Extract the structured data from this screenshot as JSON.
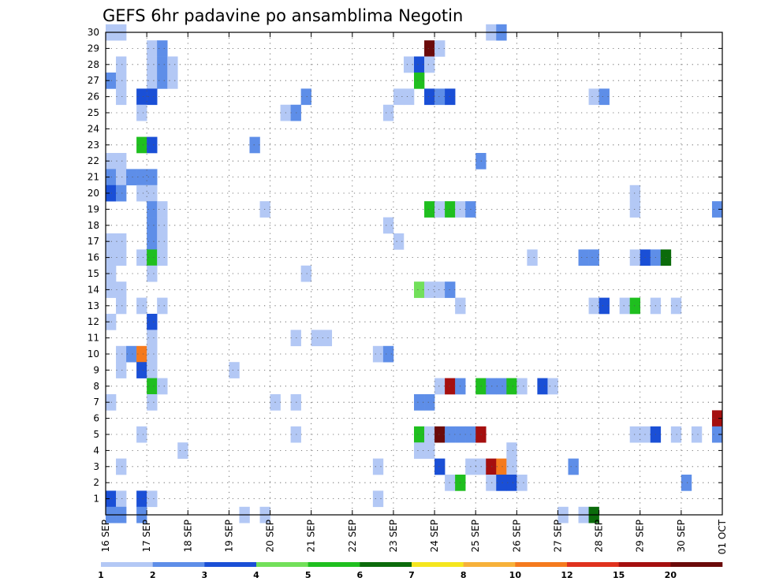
{
  "chart_data": {
    "type": "heatmap",
    "title": "GEFS 6hr padavine po ansamblima Negotin",
    "xlabel": "",
    "ylabel": "",
    "x_tick_labels": [
      "16 SEP",
      "17 SEP",
      "18 SEP",
      "19 SEP",
      "20 SEP",
      "21 SEP",
      "22 SEP",
      "23 SEP",
      "24 SEP",
      "25 SEP",
      "26 SEP",
      "27 SEP",
      "28 SEP",
      "29 SEP",
      "30 SEP",
      "01 OCT"
    ],
    "y_tick_labels": [
      "1",
      "2",
      "3",
      "4",
      "5",
      "6",
      "7",
      "8",
      "9",
      "10",
      "11",
      "12",
      "13",
      "14",
      "15",
      "16",
      "17",
      "18",
      "19",
      "20",
      "21",
      "22",
      "23",
      "24",
      "25",
      "26",
      "27",
      "28",
      "29",
      "30"
    ],
    "ylim": [
      0,
      30
    ],
    "xlim_steps": [
      0,
      60
    ],
    "step_hours": 6,
    "grid": true,
    "colorbar": {
      "labels": [
        "1",
        "2",
        "3",
        "4",
        "5",
        "6",
        "7",
        "8",
        "10",
        "12",
        "15",
        "20"
      ],
      "colors": [
        "#b3c8f5",
        "#5e8ee8",
        "#1a4fd6",
        "#72e05a",
        "#1fbf1f",
        "#0b6b0b",
        "#f5e61e",
        "#f7b13a",
        "#f57a1e",
        "#e0321e",
        "#a50f0f",
        "#6b0a0a"
      ]
    },
    "cells": [
      {
        "m": 30,
        "s": [
          0
        ],
        "v": 1
      },
      {
        "m": 30,
        "s": [
          1
        ],
        "v": 1
      },
      {
        "m": 30,
        "s": [
          37
        ],
        "v": 1
      },
      {
        "m": 30,
        "s": [
          38
        ],
        "v": 2
      },
      {
        "m": 29,
        "s": [
          4
        ],
        "v": 1
      },
      {
        "m": 29,
        "s": [
          5
        ],
        "v": 2
      },
      {
        "m": 29,
        "s": [
          31
        ],
        "v": 20
      },
      {
        "m": 29,
        "s": [
          32
        ],
        "v": 1
      },
      {
        "m": 28,
        "s": [
          1
        ],
        "v": 1
      },
      {
        "m": 28,
        "s": [
          4
        ],
        "v": 1
      },
      {
        "m": 28,
        "s": [
          5
        ],
        "v": 2
      },
      {
        "m": 28,
        "s": [
          6
        ],
        "v": 1
      },
      {
        "m": 28,
        "s": [
          29
        ],
        "v": 1
      },
      {
        "m": 28,
        "s": [
          30
        ],
        "v": 3
      },
      {
        "m": 28,
        "s": [
          31
        ],
        "v": 1
      },
      {
        "m": 27,
        "s": [
          0
        ],
        "v": 2
      },
      {
        "m": 27,
        "s": [
          1
        ],
        "v": 1
      },
      {
        "m": 27,
        "s": [
          4
        ],
        "v": 1
      },
      {
        "m": 27,
        "s": [
          5
        ],
        "v": 2
      },
      {
        "m": 27,
        "s": [
          6
        ],
        "v": 1
      },
      {
        "m": 27,
        "s": [
          30
        ],
        "v": 5
      },
      {
        "m": 26,
        "s": [
          1
        ],
        "v": 1
      },
      {
        "m": 26,
        "s": [
          3
        ],
        "v": 3
      },
      {
        "m": 26,
        "s": [
          4
        ],
        "v": 3
      },
      {
        "m": 26,
        "s": [
          19
        ],
        "v": 2
      },
      {
        "m": 26,
        "s": [
          28
        ],
        "v": 1
      },
      {
        "m": 26,
        "s": [
          29
        ],
        "v": 1
      },
      {
        "m": 26,
        "s": [
          31
        ],
        "v": 3
      },
      {
        "m": 26,
        "s": [
          32
        ],
        "v": 2
      },
      {
        "m": 26,
        "s": [
          33
        ],
        "v": 3
      },
      {
        "m": 26,
        "s": [
          47
        ],
        "v": 1
      },
      {
        "m": 26,
        "s": [
          48
        ],
        "v": 2
      },
      {
        "m": 25,
        "s": [
          3
        ],
        "v": 1
      },
      {
        "m": 25,
        "s": [
          17
        ],
        "v": 1
      },
      {
        "m": 25,
        "s": [
          18
        ],
        "v": 2
      },
      {
        "m": 25,
        "s": [
          27
        ],
        "v": 1
      },
      {
        "m": 23,
        "s": [
          3
        ],
        "v": 5
      },
      {
        "m": 23,
        "s": [
          4
        ],
        "v": 3
      },
      {
        "m": 23,
        "s": [
          14
        ],
        "v": 2
      },
      {
        "m": 22,
        "s": [
          0
        ],
        "v": 1
      },
      {
        "m": 22,
        "s": [
          1
        ],
        "v": 1
      },
      {
        "m": 22,
        "s": [
          36
        ],
        "v": 2
      },
      {
        "m": 21,
        "s": [
          0
        ],
        "v": 2
      },
      {
        "m": 21,
        "s": [
          1
        ],
        "v": 1
      },
      {
        "m": 21,
        "s": [
          2
        ],
        "v": 2
      },
      {
        "m": 21,
        "s": [
          3
        ],
        "v": 2
      },
      {
        "m": 21,
        "s": [
          4
        ],
        "v": 2
      },
      {
        "m": 20,
        "s": [
          0
        ],
        "v": 3
      },
      {
        "m": 20,
        "s": [
          1
        ],
        "v": 2
      },
      {
        "m": 20,
        "s": [
          3
        ],
        "v": 1
      },
      {
        "m": 20,
        "s": [
          4
        ],
        "v": 1
      },
      {
        "m": 20,
        "s": [
          51
        ],
        "v": 1
      },
      {
        "m": 19,
        "s": [
          4
        ],
        "v": 2
      },
      {
        "m": 19,
        "s": [
          5
        ],
        "v": 1
      },
      {
        "m": 19,
        "s": [
          15
        ],
        "v": 1
      },
      {
        "m": 19,
        "s": [
          31
        ],
        "v": 5
      },
      {
        "m": 19,
        "s": [
          32
        ],
        "v": 1
      },
      {
        "m": 19,
        "s": [
          33
        ],
        "v": 5
      },
      {
        "m": 19,
        "s": [
          34
        ],
        "v": 1
      },
      {
        "m": 19,
        "s": [
          35
        ],
        "v": 2
      },
      {
        "m": 19,
        "s": [
          51
        ],
        "v": 1
      },
      {
        "m": 19,
        "s": [
          59
        ],
        "v": 2
      },
      {
        "m": 18,
        "s": [
          4
        ],
        "v": 2
      },
      {
        "m": 18,
        "s": [
          5
        ],
        "v": 1
      },
      {
        "m": 18,
        "s": [
          27
        ],
        "v": 1
      },
      {
        "m": 17,
        "s": [
          0
        ],
        "v": 1
      },
      {
        "m": 17,
        "s": [
          1
        ],
        "v": 1
      },
      {
        "m": 17,
        "s": [
          4
        ],
        "v": 2
      },
      {
        "m": 17,
        "s": [
          5
        ],
        "v": 1
      },
      {
        "m": 17,
        "s": [
          28
        ],
        "v": 1
      },
      {
        "m": 16,
        "s": [
          0
        ],
        "v": 1
      },
      {
        "m": 16,
        "s": [
          1
        ],
        "v": 1
      },
      {
        "m": 16,
        "s": [
          3
        ],
        "v": 1
      },
      {
        "m": 16,
        "s": [
          4
        ],
        "v": 5
      },
      {
        "m": 16,
        "s": [
          5
        ],
        "v": 1
      },
      {
        "m": 16,
        "s": [
          41
        ],
        "v": 1
      },
      {
        "m": 16,
        "s": [
          46
        ],
        "v": 2
      },
      {
        "m": 16,
        "s": [
          47
        ],
        "v": 2
      },
      {
        "m": 16,
        "s": [
          51
        ],
        "v": 1
      },
      {
        "m": 16,
        "s": [
          52
        ],
        "v": 3
      },
      {
        "m": 16,
        "s": [
          53
        ],
        "v": 2
      },
      {
        "m": 16,
        "s": [
          54
        ],
        "v": 6
      },
      {
        "m": 15,
        "s": [
          0
        ],
        "v": 1
      },
      {
        "m": 15,
        "s": [
          4
        ],
        "v": 1
      },
      {
        "m": 15,
        "s": [
          19
        ],
        "v": 1
      },
      {
        "m": 14,
        "s": [
          0
        ],
        "v": 1
      },
      {
        "m": 14,
        "s": [
          1
        ],
        "v": 1
      },
      {
        "m": 14,
        "s": [
          30
        ],
        "v": 4
      },
      {
        "m": 14,
        "s": [
          31
        ],
        "v": 1
      },
      {
        "m": 14,
        "s": [
          32
        ],
        "v": 1
      },
      {
        "m": 14,
        "s": [
          33
        ],
        "v": 2
      },
      {
        "m": 13,
        "s": [
          1
        ],
        "v": 1
      },
      {
        "m": 13,
        "s": [
          3
        ],
        "v": 1
      },
      {
        "m": 13,
        "s": [
          5
        ],
        "v": 1
      },
      {
        "m": 13,
        "s": [
          34
        ],
        "v": 1
      },
      {
        "m": 13,
        "s": [
          47
        ],
        "v": 1
      },
      {
        "m": 13,
        "s": [
          48
        ],
        "v": 3
      },
      {
        "m": 13,
        "s": [
          50
        ],
        "v": 1
      },
      {
        "m": 13,
        "s": [
          51
        ],
        "v": 5
      },
      {
        "m": 13,
        "s": [
          53
        ],
        "v": 1
      },
      {
        "m": 13,
        "s": [
          55
        ],
        "v": 1
      },
      {
        "m": 12,
        "s": [
          0
        ],
        "v": 1
      },
      {
        "m": 12,
        "s": [
          4
        ],
        "v": 3
      },
      {
        "m": 11,
        "s": [
          4
        ],
        "v": 1
      },
      {
        "m": 11,
        "s": [
          18
        ],
        "v": 1
      },
      {
        "m": 11,
        "s": [
          20
        ],
        "v": 1
      },
      {
        "m": 11,
        "s": [
          21
        ],
        "v": 1
      },
      {
        "m": 10,
        "s": [
          1
        ],
        "v": 1
      },
      {
        "m": 10,
        "s": [
          2
        ],
        "v": 2
      },
      {
        "m": 10,
        "s": [
          3
        ],
        "v": 10
      },
      {
        "m": 10,
        "s": [
          4
        ],
        "v": 1
      },
      {
        "m": 10,
        "s": [
          26
        ],
        "v": 1
      },
      {
        "m": 10,
        "s": [
          27
        ],
        "v": 2
      },
      {
        "m": 9,
        "s": [
          1
        ],
        "v": 1
      },
      {
        "m": 9,
        "s": [
          3
        ],
        "v": 3
      },
      {
        "m": 9,
        "s": [
          4
        ],
        "v": 1
      },
      {
        "m": 9,
        "s": [
          12
        ],
        "v": 1
      },
      {
        "m": 8,
        "s": [
          4
        ],
        "v": 5
      },
      {
        "m": 8,
        "s": [
          5
        ],
        "v": 1
      },
      {
        "m": 8,
        "s": [
          32
        ],
        "v": 1
      },
      {
        "m": 8,
        "s": [
          33
        ],
        "v": 15
      },
      {
        "m": 8,
        "s": [
          34
        ],
        "v": 2
      },
      {
        "m": 8,
        "s": [
          36
        ],
        "v": 5
      },
      {
        "m": 8,
        "s": [
          37
        ],
        "v": 2
      },
      {
        "m": 8,
        "s": [
          38
        ],
        "v": 2
      },
      {
        "m": 8,
        "s": [
          39
        ],
        "v": 5
      },
      {
        "m": 8,
        "s": [
          40
        ],
        "v": 1
      },
      {
        "m": 8,
        "s": [
          42
        ],
        "v": 3
      },
      {
        "m": 8,
        "s": [
          43
        ],
        "v": 1
      },
      {
        "m": 7,
        "s": [
          0
        ],
        "v": 1
      },
      {
        "m": 7,
        "s": [
          4
        ],
        "v": 1
      },
      {
        "m": 7,
        "s": [
          16
        ],
        "v": 1
      },
      {
        "m": 7,
        "s": [
          18
        ],
        "v": 1
      },
      {
        "m": 7,
        "s": [
          30
        ],
        "v": 2
      },
      {
        "m": 7,
        "s": [
          31
        ],
        "v": 2
      },
      {
        "m": 6,
        "s": [
          59
        ],
        "v": 15
      },
      {
        "m": 5,
        "s": [
          3
        ],
        "v": 1
      },
      {
        "m": 5,
        "s": [
          18
        ],
        "v": 1
      },
      {
        "m": 5,
        "s": [
          30
        ],
        "v": 5
      },
      {
        "m": 5,
        "s": [
          31
        ],
        "v": 1
      },
      {
        "m": 5,
        "s": [
          32
        ],
        "v": 20
      },
      {
        "m": 5,
        "s": [
          33
        ],
        "v": 2
      },
      {
        "m": 5,
        "s": [
          34
        ],
        "v": 2
      },
      {
        "m": 5,
        "s": [
          35
        ],
        "v": 2
      },
      {
        "m": 5,
        "s": [
          36
        ],
        "v": 15
      },
      {
        "m": 5,
        "s": [
          51
        ],
        "v": 1
      },
      {
        "m": 5,
        "s": [
          52
        ],
        "v": 1
      },
      {
        "m": 5,
        "s": [
          53
        ],
        "v": 3
      },
      {
        "m": 5,
        "s": [
          55
        ],
        "v": 1
      },
      {
        "m": 5,
        "s": [
          57
        ],
        "v": 1
      },
      {
        "m": 5,
        "s": [
          59
        ],
        "v": 2
      },
      {
        "m": 4,
        "s": [
          7
        ],
        "v": 1
      },
      {
        "m": 4,
        "s": [
          30
        ],
        "v": 1
      },
      {
        "m": 4,
        "s": [
          31
        ],
        "v": 1
      },
      {
        "m": 4,
        "s": [
          39
        ],
        "v": 1
      },
      {
        "m": 3,
        "s": [
          1
        ],
        "v": 1
      },
      {
        "m": 3,
        "s": [
          26
        ],
        "v": 1
      },
      {
        "m": 3,
        "s": [
          32
        ],
        "v": 3
      },
      {
        "m": 3,
        "s": [
          35
        ],
        "v": 1
      },
      {
        "m": 3,
        "s": [
          36
        ],
        "v": 1
      },
      {
        "m": 3,
        "s": [
          37
        ],
        "v": 15
      },
      {
        "m": 3,
        "s": [
          38
        ],
        "v": 10
      },
      {
        "m": 3,
        "s": [
          39
        ],
        "v": 1
      },
      {
        "m": 3,
        "s": [
          45
        ],
        "v": 2
      },
      {
        "m": 2,
        "s": [
          33
        ],
        "v": 1
      },
      {
        "m": 2,
        "s": [
          34
        ],
        "v": 5
      },
      {
        "m": 2,
        "s": [
          37
        ],
        "v": 1
      },
      {
        "m": 2,
        "s": [
          38
        ],
        "v": 3
      },
      {
        "m": 2,
        "s": [
          39
        ],
        "v": 3
      },
      {
        "m": 2,
        "s": [
          40
        ],
        "v": 1
      },
      {
        "m": 2,
        "s": [
          56
        ],
        "v": 2
      },
      {
        "m": 1,
        "s": [
          0
        ],
        "v": 3
      },
      {
        "m": 1,
        "s": [
          1
        ],
        "v": 1
      },
      {
        "m": 1,
        "s": [
          3
        ],
        "v": 3
      },
      {
        "m": 1,
        "s": [
          4
        ],
        "v": 1
      },
      {
        "m": 1,
        "s": [
          26
        ],
        "v": 1
      },
      {
        "m": 0,
        "s": [
          0
        ],
        "v": 2
      },
      {
        "m": 0,
        "s": [
          1
        ],
        "v": 2
      },
      {
        "m": 0,
        "s": [
          3
        ],
        "v": 2
      },
      {
        "m": 0,
        "s": [
          13
        ],
        "v": 1
      },
      {
        "m": 0,
        "s": [
          15
        ],
        "v": 1
      },
      {
        "m": 0,
        "s": [
          44
        ],
        "v": 1
      },
      {
        "m": 0,
        "s": [
          46
        ],
        "v": 1
      },
      {
        "m": 0,
        "s": [
          47
        ],
        "v": 6
      }
    ]
  }
}
